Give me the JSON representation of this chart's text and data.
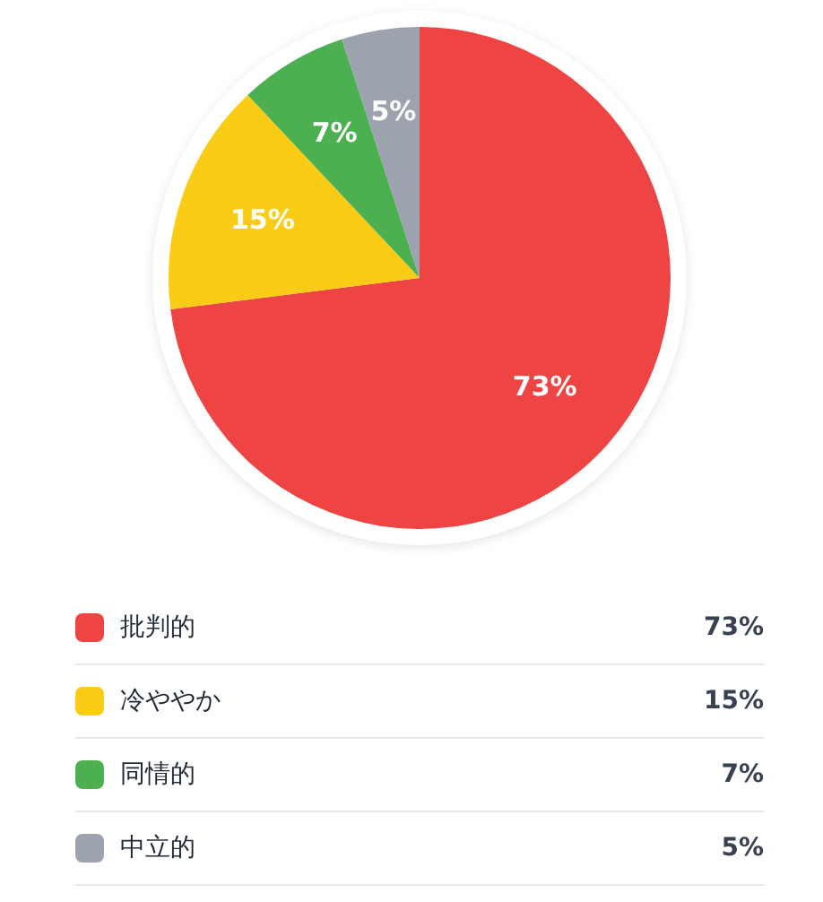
{
  "chart_data": {
    "type": "pie",
    "categories": [
      "批判的",
      "冷ややか",
      "同情的",
      "中立的"
    ],
    "values": [
      73,
      15,
      7,
      5
    ],
    "colors": [
      "#ef4444",
      "#facc15",
      "#4caf50",
      "#9ca3af"
    ],
    "value_labels": [
      "73%",
      "15%",
      "7%",
      "5%"
    ],
    "legend": "bottom"
  }
}
